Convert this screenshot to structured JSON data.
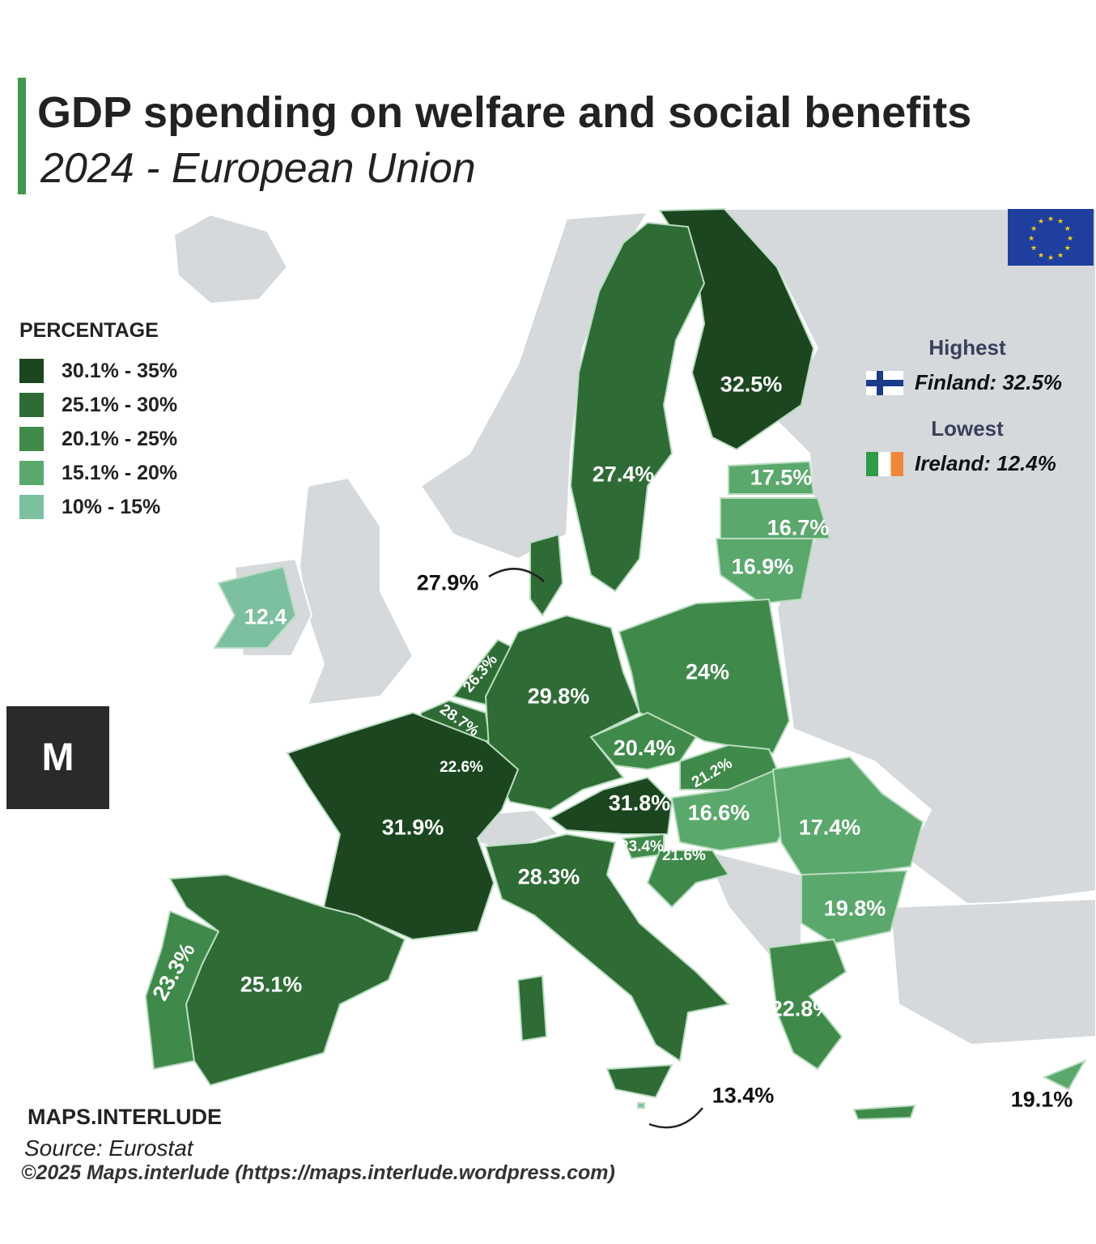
{
  "title": "GDP spending on welfare and social benefits",
  "subtitle": "2024 - European Union",
  "legend": {
    "title": "PERCENTAGE",
    "items": [
      {
        "label": "30.1% - 35%",
        "color": "#1b4620"
      },
      {
        "label": "25.1% - 30%",
        "color": "#2e6b35"
      },
      {
        "label": "20.1% - 25%",
        "color": "#3f8a4a"
      },
      {
        "label": "15.1% - 20%",
        "color": "#5aa86c"
      },
      {
        "label": "10% - 15%",
        "color": "#7cc0a0"
      }
    ]
  },
  "highlights": {
    "highest_heading": "Highest",
    "highest": "Finland: 32.5%",
    "lowest_heading": "Lowest",
    "lowest": "Ireland: 12.4%"
  },
  "regions": [
    {
      "id": "finland",
      "value": "32.5%",
      "band": 0
    },
    {
      "id": "sweden",
      "value": "27.4%",
      "band": 1
    },
    {
      "id": "estonia",
      "value": "17.5%",
      "band": 3
    },
    {
      "id": "latvia",
      "value": "16.7%",
      "band": 3
    },
    {
      "id": "lithuania",
      "value": "16.9%",
      "band": 3
    },
    {
      "id": "denmark",
      "value": "27.9%",
      "band": 1
    },
    {
      "id": "ireland",
      "value": "12.4",
      "band": 4
    },
    {
      "id": "netherlands",
      "value": "26.3%",
      "band": 1
    },
    {
      "id": "belgium",
      "value": "28.7%",
      "band": 1
    },
    {
      "id": "luxembourg",
      "value": "22.6%",
      "band": 2
    },
    {
      "id": "germany",
      "value": "29.8%",
      "band": 1
    },
    {
      "id": "poland",
      "value": "24%",
      "band": 2
    },
    {
      "id": "czechia",
      "value": "20.4%",
      "band": 2
    },
    {
      "id": "slovakia",
      "value": "21.2%",
      "band": 2
    },
    {
      "id": "austria",
      "value": "31.8%",
      "band": 0
    },
    {
      "id": "hungary",
      "value": "16.6%",
      "band": 3
    },
    {
      "id": "france",
      "value": "31.9%",
      "band": 0
    },
    {
      "id": "slovenia",
      "value": "23.4%",
      "band": 2
    },
    {
      "id": "croatia",
      "value": "21.6%",
      "band": 2
    },
    {
      "id": "romania",
      "value": "17.4%",
      "band": 3
    },
    {
      "id": "italy",
      "value": "28.3%",
      "band": 1
    },
    {
      "id": "bulgaria",
      "value": "19.8%",
      "band": 3
    },
    {
      "id": "portugal",
      "value": "23.3%",
      "band": 2
    },
    {
      "id": "spain",
      "value": "25.1%",
      "band": 1
    },
    {
      "id": "greece",
      "value": "22.8%",
      "band": 2
    },
    {
      "id": "malta",
      "value": "13.4%",
      "band": 4
    },
    {
      "id": "cyprus",
      "value": "19.1%",
      "band": 3
    }
  ],
  "colors": {
    "non_eu_land": "#d5d9dc",
    "border": "#b9dcc0",
    "eu_flag": "#1f3fa0",
    "eu_stars": "#f5d300"
  },
  "brand": "MAPS.INTERLUDE",
  "source": "Source: Eurostat",
  "copyright": "©2025 Maps.interlude (https://maps.interlude.wordpress.com)"
}
